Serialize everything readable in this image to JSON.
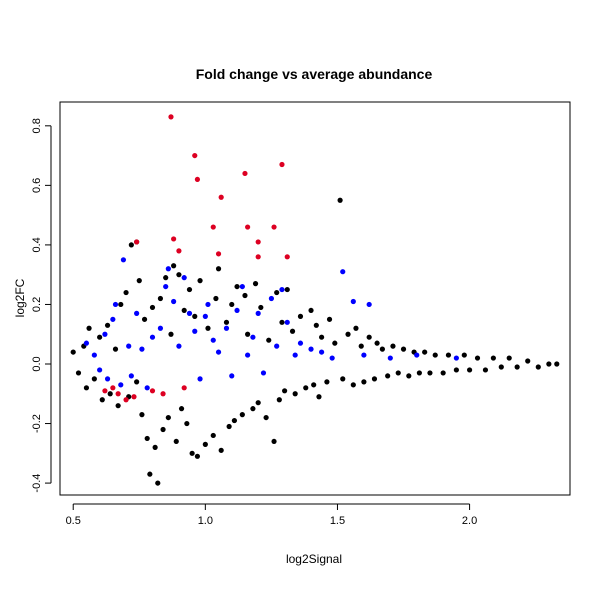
{
  "chart_data": {
    "type": "scatter",
    "title": "Fold change vs average abundance",
    "xlabel": "log2Signal",
    "ylabel": "log2FC",
    "xlim": [
      0.45,
      2.38
    ],
    "ylim": [
      -0.44,
      0.88
    ],
    "xticks": [
      0.5,
      1.0,
      1.5,
      2.0
    ],
    "xtick_labels": [
      "0.5",
      "1.0",
      "1.5",
      "2.0"
    ],
    "yticks": [
      -0.4,
      -0.2,
      0.0,
      0.2,
      0.4,
      0.6,
      0.8
    ],
    "ytick_labels": [
      "-0.4",
      "-0.2",
      "0.0",
      "0.2",
      "0.4",
      "0.6",
      "0.8"
    ],
    "grid": false,
    "legend": "none",
    "series": [
      {
        "color": "#000000",
        "points": [
          [
            0.5,
            0.04
          ],
          [
            0.52,
            -0.03
          ],
          [
            0.54,
            0.06
          ],
          [
            0.55,
            -0.08
          ],
          [
            0.56,
            0.12
          ],
          [
            0.58,
            -0.05
          ],
          [
            0.6,
            0.09
          ],
          [
            0.61,
            -0.12
          ],
          [
            0.63,
            0.13
          ],
          [
            0.64,
            -0.1
          ],
          [
            0.66,
            0.05
          ],
          [
            0.67,
            -0.14
          ],
          [
            0.68,
            0.2
          ],
          [
            0.7,
            0.24
          ],
          [
            0.71,
            -0.11
          ],
          [
            0.72,
            0.4
          ],
          [
            0.74,
            0.41
          ],
          [
            0.74,
            -0.06
          ],
          [
            0.75,
            0.28
          ],
          [
            0.76,
            -0.17
          ],
          [
            0.77,
            0.15
          ],
          [
            0.78,
            -0.25
          ],
          [
            0.79,
            -0.37
          ],
          [
            0.8,
            0.19
          ],
          [
            0.81,
            -0.28
          ],
          [
            0.82,
            -0.4
          ],
          [
            0.83,
            0.22
          ],
          [
            0.84,
            -0.22
          ],
          [
            0.85,
            0.29
          ],
          [
            0.86,
            -0.18
          ],
          [
            0.87,
            0.1
          ],
          [
            0.88,
            0.33
          ],
          [
            0.89,
            -0.26
          ],
          [
            0.9,
            0.3
          ],
          [
            0.91,
            -0.15
          ],
          [
            0.92,
            0.18
          ],
          [
            0.93,
            -0.2
          ],
          [
            0.94,
            0.25
          ],
          [
            0.95,
            -0.3
          ],
          [
            0.96,
            0.16
          ],
          [
            0.97,
            -0.31
          ],
          [
            0.98,
            0.28
          ],
          [
            1.0,
            -0.27
          ],
          [
            1.01,
            0.12
          ],
          [
            1.03,
            -0.24
          ],
          [
            1.04,
            0.22
          ],
          [
            1.05,
            0.32
          ],
          [
            1.06,
            -0.29
          ],
          [
            1.08,
            0.14
          ],
          [
            1.09,
            -0.21
          ],
          [
            1.1,
            0.2
          ],
          [
            1.11,
            -0.19
          ],
          [
            1.12,
            0.26
          ],
          [
            1.14,
            -0.17
          ],
          [
            1.15,
            0.23
          ],
          [
            1.16,
            0.1
          ],
          [
            1.18,
            -0.15
          ],
          [
            1.19,
            0.27
          ],
          [
            1.2,
            -0.13
          ],
          [
            1.21,
            0.19
          ],
          [
            1.23,
            -0.18
          ],
          [
            1.24,
            0.08
          ],
          [
            1.26,
            -0.26
          ],
          [
            1.27,
            0.24
          ],
          [
            1.28,
            -0.12
          ],
          [
            1.29,
            0.14
          ],
          [
            1.3,
            -0.09
          ],
          [
            1.31,
            0.25
          ],
          [
            1.33,
            0.11
          ],
          [
            1.34,
            -0.1
          ],
          [
            1.36,
            0.16
          ],
          [
            1.38,
            -0.08
          ],
          [
            1.4,
            0.18
          ],
          [
            1.41,
            -0.07
          ],
          [
            1.42,
            0.13
          ],
          [
            1.43,
            -0.11
          ],
          [
            1.44,
            0.09
          ],
          [
            1.46,
            -0.06
          ],
          [
            1.47,
            0.15
          ],
          [
            1.49,
            0.07
          ],
          [
            1.51,
            0.55
          ],
          [
            1.52,
            -0.05
          ],
          [
            1.54,
            0.1
          ],
          [
            1.56,
            -0.07
          ],
          [
            1.57,
            0.12
          ],
          [
            1.59,
            0.06
          ],
          [
            1.6,
            -0.06
          ],
          [
            1.62,
            0.09
          ],
          [
            1.64,
            -0.05
          ],
          [
            1.65,
            0.07
          ],
          [
            1.67,
            0.05
          ],
          [
            1.69,
            -0.04
          ],
          [
            1.71,
            0.06
          ],
          [
            1.73,
            -0.03
          ],
          [
            1.75,
            0.05
          ],
          [
            1.77,
            -0.04
          ],
          [
            1.79,
            0.04
          ],
          [
            1.81,
            -0.03
          ],
          [
            1.83,
            0.04
          ],
          [
            1.85,
            -0.03
          ],
          [
            1.87,
            0.03
          ],
          [
            1.9,
            -0.03
          ],
          [
            1.92,
            0.03
          ],
          [
            1.95,
            -0.02
          ],
          [
            1.98,
            0.03
          ],
          [
            2.0,
            -0.02
          ],
          [
            2.03,
            0.02
          ],
          [
            2.06,
            -0.02
          ],
          [
            2.09,
            0.02
          ],
          [
            2.12,
            -0.01
          ],
          [
            2.15,
            0.02
          ],
          [
            2.18,
            -0.01
          ],
          [
            2.22,
            0.01
          ],
          [
            2.26,
            -0.01
          ],
          [
            2.3,
            0.0
          ],
          [
            2.33,
            0.0
          ]
        ]
      },
      {
        "color": "#0000ff",
        "points": [
          [
            0.55,
            0.07
          ],
          [
            0.58,
            0.03
          ],
          [
            0.6,
            -0.02
          ],
          [
            0.62,
            0.1
          ],
          [
            0.63,
            -0.05
          ],
          [
            0.65,
            0.15
          ],
          [
            0.66,
            0.2
          ],
          [
            0.68,
            -0.07
          ],
          [
            0.69,
            0.35
          ],
          [
            0.71,
            0.06
          ],
          [
            0.72,
            -0.04
          ],
          [
            0.74,
            0.17
          ],
          [
            0.76,
            0.05
          ],
          [
            0.78,
            -0.08
          ],
          [
            0.8,
            0.09
          ],
          [
            0.83,
            0.12
          ],
          [
            0.85,
            0.26
          ],
          [
            0.86,
            0.32
          ],
          [
            0.88,
            0.21
          ],
          [
            0.9,
            0.06
          ],
          [
            0.92,
            0.29
          ],
          [
            0.94,
            0.17
          ],
          [
            0.96,
            0.11
          ],
          [
            0.98,
            -0.05
          ],
          [
            1.0,
            0.16
          ],
          [
            1.01,
            0.2
          ],
          [
            1.03,
            0.08
          ],
          [
            1.05,
            0.04
          ],
          [
            1.08,
            0.12
          ],
          [
            1.1,
            -0.04
          ],
          [
            1.12,
            0.18
          ],
          [
            1.14,
            0.26
          ],
          [
            1.16,
            0.03
          ],
          [
            1.18,
            0.09
          ],
          [
            1.2,
            0.17
          ],
          [
            1.22,
            -0.03
          ],
          [
            1.25,
            0.22
          ],
          [
            1.27,
            0.06
          ],
          [
            1.29,
            0.25
          ],
          [
            1.31,
            0.14
          ],
          [
            1.34,
            0.03
          ],
          [
            1.36,
            0.07
          ],
          [
            1.4,
            0.05
          ],
          [
            1.44,
            0.04
          ],
          [
            1.48,
            0.02
          ],
          [
            1.52,
            0.31
          ],
          [
            1.56,
            0.21
          ],
          [
            1.6,
            0.03
          ],
          [
            1.62,
            0.2
          ],
          [
            1.7,
            0.02
          ],
          [
            1.8,
            0.03
          ],
          [
            1.95,
            0.02
          ]
        ]
      },
      {
        "color": "#dd0022",
        "points": [
          [
            0.62,
            -0.09
          ],
          [
            0.65,
            -0.08
          ],
          [
            0.67,
            -0.1
          ],
          [
            0.7,
            -0.12
          ],
          [
            0.73,
            -0.11
          ],
          [
            0.74,
            0.41
          ],
          [
            0.8,
            -0.09
          ],
          [
            0.84,
            -0.1
          ],
          [
            0.87,
            0.83
          ],
          [
            0.88,
            0.42
          ],
          [
            0.9,
            0.38
          ],
          [
            0.92,
            -0.08
          ],
          [
            0.96,
            0.7
          ],
          [
            0.97,
            0.62
          ],
          [
            1.03,
            0.46
          ],
          [
            1.05,
            0.37
          ],
          [
            1.06,
            0.56
          ],
          [
            1.15,
            0.64
          ],
          [
            1.16,
            0.46
          ],
          [
            1.2,
            0.41
          ],
          [
            1.2,
            0.36
          ],
          [
            1.26,
            0.46
          ],
          [
            1.29,
            0.67
          ],
          [
            1.31,
            0.36
          ]
        ]
      }
    ]
  }
}
